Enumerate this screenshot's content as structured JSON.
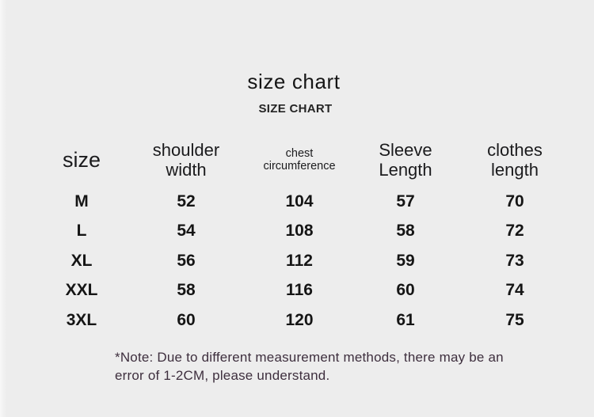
{
  "page": {
    "title": "size chart",
    "subtitle": "SIZE CHART"
  },
  "colors": {
    "background": "#ededed",
    "text": "#1c1c1e",
    "note_text": "#3e2f3e"
  },
  "header": {
    "size": "size",
    "shoulder_line1": "shoulder",
    "shoulder_line2": "width",
    "chest_line1": "chest",
    "chest_line2": "circumference",
    "sleeve_line1": "Sleeve",
    "sleeve_line2": "Length",
    "clothes_line1": "clothes",
    "clothes_line2": "length"
  },
  "note": {
    "line1": "*Note: Due to different measurement methods, there may be an",
    "line2": "error of 1-2CM, please understand."
  },
  "chart_data": {
    "type": "table",
    "title": "size chart",
    "subtitle": "SIZE CHART",
    "columns": [
      "size",
      "shoulder width",
      "chest circumference",
      "Sleeve Length",
      "clothes length"
    ],
    "rows": [
      {
        "size": "M",
        "shoulder_width": 52,
        "chest_circumference": 104,
        "sleeve_length": 57,
        "clothes_length": 70
      },
      {
        "size": "L",
        "shoulder_width": 54,
        "chest_circumference": 108,
        "sleeve_length": 58,
        "clothes_length": 72
      },
      {
        "size": "XL",
        "shoulder_width": 56,
        "chest_circumference": 112,
        "sleeve_length": 59,
        "clothes_length": 73
      },
      {
        "size": "XXL",
        "shoulder_width": 58,
        "chest_circumference": 116,
        "sleeve_length": 60,
        "clothes_length": 74
      },
      {
        "size": "3XL",
        "shoulder_width": 60,
        "chest_circumference": 120,
        "sleeve_length": 61,
        "clothes_length": 75
      }
    ],
    "units": "CM",
    "note": "*Note: Due to different measurement methods, there may be an error of 1-2CM, please understand."
  }
}
